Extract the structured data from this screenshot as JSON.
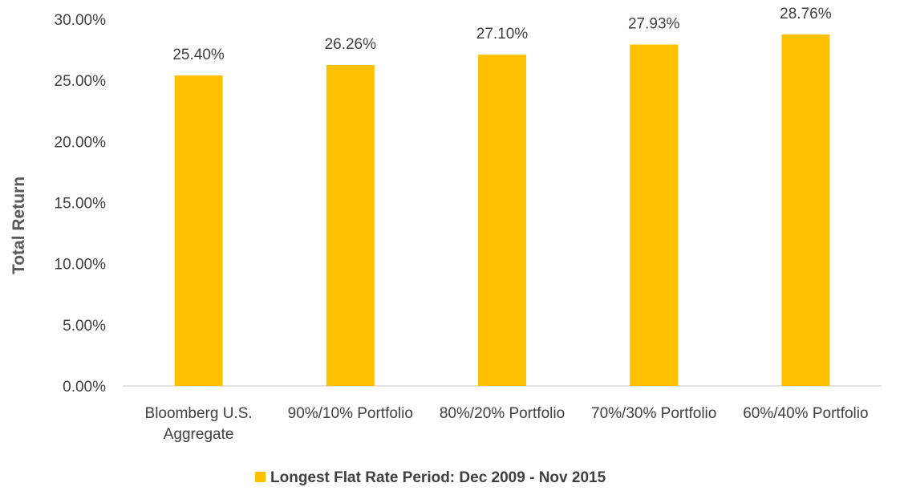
{
  "chart_data": {
    "type": "bar",
    "categories": [
      [
        "Bloomberg U.S.",
        "Aggregate"
      ],
      [
        "90%/10% Portfolio"
      ],
      [
        "80%/20% Portfolio"
      ],
      [
        "70%/30% Portfolio"
      ],
      [
        "60%/40% Portfolio"
      ]
    ],
    "series": [
      {
        "name": "Longest Flat Rate Period: Dec 2009 - Nov 2015",
        "values": [
          25.4,
          26.26,
          27.1,
          27.93,
          28.76
        ],
        "data_labels": [
          "25.40%",
          "26.26%",
          "27.10%",
          "27.93%",
          "28.76%"
        ],
        "color": "#FFC000"
      }
    ],
    "ylabel": "Total Return",
    "ylim": [
      0,
      30
    ],
    "yticks": [
      0,
      5,
      10,
      15,
      20,
      25,
      30
    ],
    "ytick_labels": [
      "0.00%",
      "5.00%",
      "10.00%",
      "15.00%",
      "20.00%",
      "25.00%",
      "30.00%"
    ],
    "grid": false,
    "legend_position": "bottom"
  }
}
